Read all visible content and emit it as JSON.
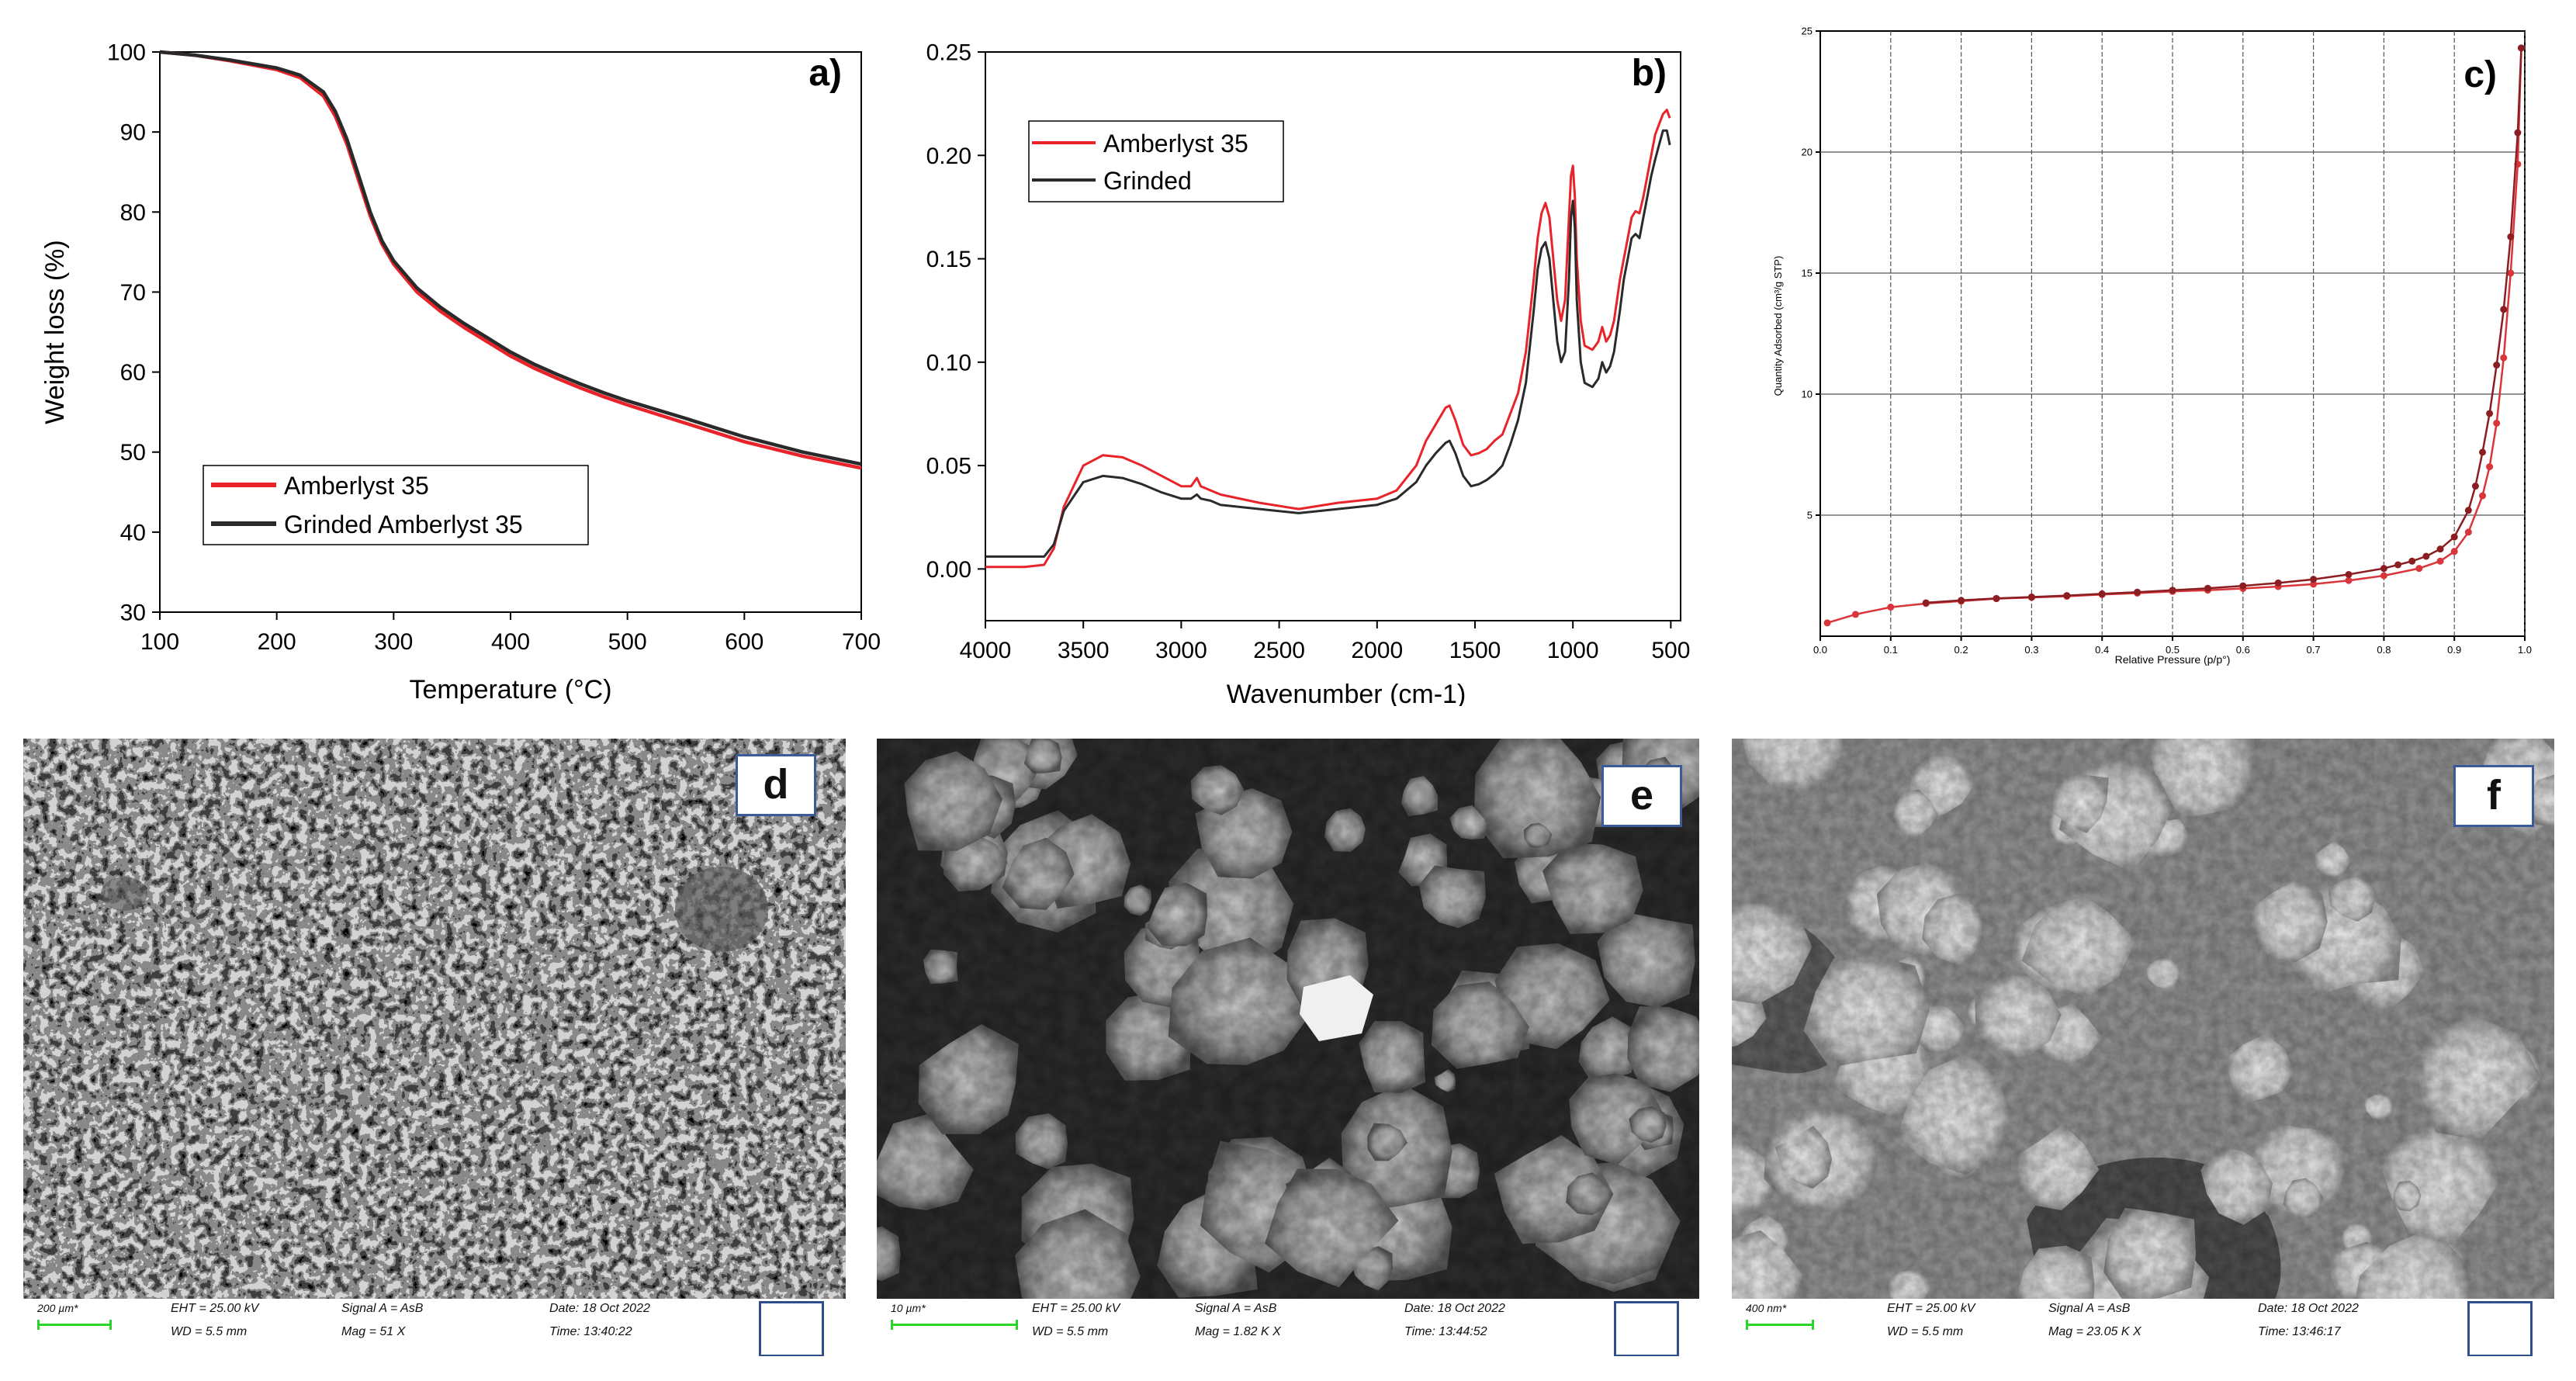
{
  "panels": {
    "a": {
      "label": "a)",
      "xlabel": "Temperature (°C)",
      "ylabel": "Weight loss (%)",
      "xticks": [
        "100",
        "200",
        "300",
        "400",
        "500",
        "600",
        "700"
      ],
      "yticks": [
        "30",
        "40",
        "50",
        "60",
        "70",
        "80",
        "90",
        "100"
      ],
      "legend": [
        "Amberlyst 35",
        "Grinded Amberlyst 35"
      ]
    },
    "b": {
      "label": "b)",
      "xlabel": "Wavenumber (cm-1)",
      "xticks": [
        "4000",
        "3500",
        "3000",
        "2500",
        "2000",
        "1500",
        "1000",
        "500"
      ],
      "yticks": [
        "0.00",
        "0.05",
        "0.10",
        "0.15",
        "0.20",
        "0.25"
      ],
      "legend": [
        "Amberlyst 35",
        "Grinded"
      ]
    },
    "c": {
      "label": "c)",
      "xlabel": "Relative Pressure (p/p°)",
      "ylabel": "Quantity Adsorbed (cm³/g STP)",
      "xticks": [
        "0.0",
        "0.1",
        "0.2",
        "0.3",
        "0.4",
        "0.5",
        "0.6",
        "0.7",
        "0.8",
        "0.9",
        "1.0"
      ],
      "yticks": [
        "",
        "5",
        "10",
        "15",
        "20",
        "25"
      ]
    }
  },
  "sem": {
    "d": {
      "label": "d",
      "scale": "200 µm*",
      "eht": "EHT = 25.00 kV",
      "wd": "WD = 5.5 mm",
      "signal": "Signal A = AsB",
      "mag": "Mag =     51 X",
      "date": "Date: 18 Oct 2022",
      "time": "Time: 13:40:22"
    },
    "e": {
      "label": "e",
      "scale": "10 µm*",
      "eht": "EHT = 25.00 kV",
      "wd": "WD = 5.5 mm",
      "signal": "Signal A = AsB",
      "mag": "Mag =   1.82 K X",
      "date": "Date: 18 Oct 2022",
      "time": "Time: 13:44:52"
    },
    "f": {
      "label": "f",
      "scale": "400 nm*",
      "eht": "EHT = 25.00 kV",
      "wd": "WD = 5.5 mm",
      "signal": "Signal A = AsB",
      "mag": "Mag =   23.05 K X",
      "date": "Date: 18 Oct 2022",
      "time": "Time: 13:46:17"
    }
  },
  "colors": {
    "red": "#e8232a",
    "black": "#2a2a2a",
    "bet_red": "#d8363a",
    "bet_dark": "#8b1e22"
  },
  "chart_data": [
    {
      "type": "line",
      "xlim": [
        100,
        700
      ],
      "ylim": [
        30,
        100
      ],
      "series": [
        {
          "name": "Amberlyst 35",
          "color": "#e8232a",
          "x": [
            100,
            130,
            160,
            200,
            220,
            240,
            250,
            260,
            270,
            280,
            290,
            300,
            320,
            340,
            360,
            380,
            400,
            420,
            440,
            460,
            480,
            500,
            550,
            600,
            650,
            700
          ],
          "y": [
            100,
            99.6,
            98.9,
            97.8,
            96.8,
            94.5,
            92.0,
            88.5,
            84.0,
            79.5,
            76.0,
            73.5,
            70.0,
            67.6,
            65.6,
            63.8,
            62.0,
            60.5,
            59.2,
            58.0,
            56.9,
            55.9,
            53.6,
            51.3,
            49.5,
            48.0
          ]
        },
        {
          "name": "Grinded Amberlyst 35",
          "color": "#2a2a2a",
          "x": [
            100,
            130,
            160,
            200,
            220,
            240,
            250,
            260,
            270,
            280,
            290,
            300,
            320,
            340,
            360,
            380,
            400,
            420,
            440,
            460,
            480,
            500,
            550,
            600,
            650,
            700
          ],
          "y": [
            100,
            99.6,
            99.0,
            98.0,
            97.1,
            95.0,
            92.6,
            89.1,
            84.6,
            80.0,
            76.4,
            73.9,
            70.5,
            68.1,
            66.1,
            64.3,
            62.5,
            61.0,
            59.7,
            58.5,
            57.4,
            56.4,
            54.2,
            51.9,
            50.0,
            48.5
          ]
        }
      ]
    },
    {
      "type": "line",
      "xlim": [
        4000,
        450
      ],
      "ylim": [
        -0.025,
        0.25
      ],
      "series": [
        {
          "name": "Amberlyst 35",
          "color": "#e8232a",
          "x": [
            4000,
            3800,
            3700,
            3650,
            3600,
            3500,
            3400,
            3300,
            3200,
            3100,
            3000,
            2950,
            2920,
            2900,
            2850,
            2800,
            2600,
            2400,
            2200,
            2000,
            1900,
            1800,
            1750,
            1700,
            1650,
            1630,
            1600,
            1560,
            1520,
            1480,
            1440,
            1400,
            1360,
            1320,
            1280,
            1240,
            1200,
            1180,
            1160,
            1140,
            1120,
            1100,
            1080,
            1060,
            1040,
            1020,
            1010,
            1000,
            990,
            980,
            960,
            940,
            900,
            870,
            850,
            830,
            810,
            790,
            760,
            740,
            720,
            700,
            680,
            660,
            640,
            620,
            600,
            580,
            560,
            540,
            520,
            505
          ],
          "y": [
            0.001,
            0.001,
            0.002,
            0.01,
            0.03,
            0.05,
            0.055,
            0.054,
            0.05,
            0.045,
            0.04,
            0.04,
            0.044,
            0.04,
            0.038,
            0.036,
            0.032,
            0.029,
            0.032,
            0.034,
            0.038,
            0.05,
            0.062,
            0.07,
            0.078,
            0.079,
            0.072,
            0.06,
            0.055,
            0.056,
            0.058,
            0.062,
            0.065,
            0.075,
            0.085,
            0.105,
            0.14,
            0.16,
            0.172,
            0.177,
            0.17,
            0.15,
            0.13,
            0.12,
            0.13,
            0.17,
            0.19,
            0.195,
            0.18,
            0.15,
            0.12,
            0.108,
            0.106,
            0.11,
            0.117,
            0.11,
            0.113,
            0.12,
            0.14,
            0.15,
            0.16,
            0.17,
            0.173,
            0.172,
            0.18,
            0.19,
            0.2,
            0.21,
            0.215,
            0.22,
            0.222,
            0.218
          ]
        },
        {
          "name": "Grinded",
          "color": "#2a2a2a",
          "x": [
            4000,
            3800,
            3700,
            3650,
            3600,
            3500,
            3400,
            3300,
            3200,
            3100,
            3000,
            2950,
            2920,
            2900,
            2850,
            2800,
            2600,
            2400,
            2200,
            2000,
            1900,
            1800,
            1750,
            1700,
            1650,
            1630,
            1600,
            1560,
            1520,
            1480,
            1440,
            1400,
            1360,
            1320,
            1280,
            1240,
            1200,
            1180,
            1160,
            1140,
            1120,
            1100,
            1080,
            1060,
            1040,
            1020,
            1010,
            1000,
            990,
            980,
            960,
            940,
            900,
            870,
            850,
            830,
            810,
            790,
            760,
            740,
            720,
            700,
            680,
            660,
            640,
            620,
            600,
            580,
            560,
            540,
            520,
            505
          ],
          "y": [
            0.006,
            0.006,
            0.006,
            0.012,
            0.028,
            0.042,
            0.045,
            0.044,
            0.041,
            0.037,
            0.034,
            0.034,
            0.036,
            0.034,
            0.033,
            0.031,
            0.029,
            0.027,
            0.029,
            0.031,
            0.034,
            0.042,
            0.05,
            0.056,
            0.061,
            0.062,
            0.056,
            0.045,
            0.04,
            0.041,
            0.043,
            0.046,
            0.05,
            0.06,
            0.072,
            0.09,
            0.125,
            0.145,
            0.155,
            0.158,
            0.15,
            0.13,
            0.11,
            0.1,
            0.105,
            0.14,
            0.17,
            0.178,
            0.165,
            0.13,
            0.1,
            0.09,
            0.088,
            0.092,
            0.1,
            0.095,
            0.098,
            0.105,
            0.125,
            0.14,
            0.15,
            0.16,
            0.162,
            0.16,
            0.17,
            0.18,
            0.19,
            0.198,
            0.205,
            0.212,
            0.212,
            0.205
          ]
        }
      ]
    },
    {
      "type": "line",
      "xlim": [
        0,
        1.0
      ],
      "ylim": [
        0,
        25
      ],
      "series": [
        {
          "color": "#d8363a",
          "x": [
            0.01,
            0.05,
            0.1,
            0.15,
            0.2,
            0.25,
            0.3,
            0.35,
            0.4,
            0.45,
            0.5,
            0.55,
            0.6,
            0.65,
            0.7,
            0.75,
            0.8,
            0.85,
            0.88,
            0.9,
            0.92,
            0.94,
            0.95,
            0.96,
            0.97,
            0.98,
            0.99,
            0.995
          ],
          "y": [
            0.55,
            0.9,
            1.2,
            1.35,
            1.45,
            1.55,
            1.6,
            1.65,
            1.72,
            1.78,
            1.85,
            1.9,
            1.97,
            2.05,
            2.15,
            2.3,
            2.5,
            2.8,
            3.1,
            3.5,
            4.3,
            5.8,
            7.0,
            8.8,
            11.5,
            15.0,
            19.5,
            24.3
          ]
        },
        {
          "color": "#8b1e22",
          "x": [
            0.995,
            0.99,
            0.98,
            0.97,
            0.96,
            0.95,
            0.94,
            0.93,
            0.92,
            0.9,
            0.88,
            0.86,
            0.84,
            0.82,
            0.8,
            0.75,
            0.7,
            0.65,
            0.6,
            0.55,
            0.5,
            0.45,
            0.4,
            0.35,
            0.3,
            0.25,
            0.2,
            0.15
          ],
          "y": [
            24.3,
            20.8,
            16.5,
            13.5,
            11.2,
            9.2,
            7.6,
            6.2,
            5.2,
            4.1,
            3.6,
            3.3,
            3.1,
            2.95,
            2.8,
            2.55,
            2.35,
            2.2,
            2.08,
            1.98,
            1.9,
            1.82,
            1.75,
            1.68,
            1.62,
            1.56,
            1.48,
            1.38
          ]
        }
      ]
    }
  ]
}
